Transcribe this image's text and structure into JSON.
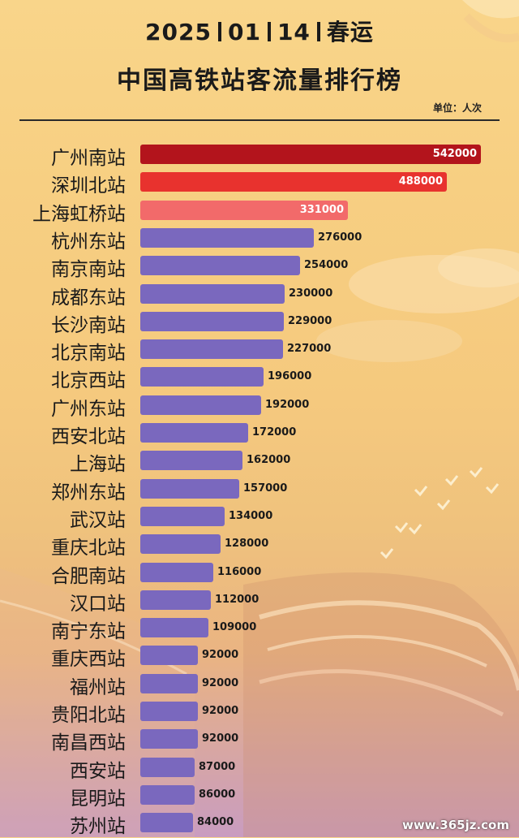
{
  "header": {
    "year": "2025",
    "month": "01",
    "day": "14",
    "event": "春运",
    "title": "中国高铁站客流量排行榜",
    "unit_label": "单位：人次"
  },
  "watermark": "www.365jz.com",
  "colors": {
    "rank1": "#b3141c",
    "rank2": "#e8322e",
    "rank3": "#f26a6a",
    "default": "#7a68be",
    "value_on_bar": "#ffffff",
    "value_outside": "#1a1a1a"
  },
  "chart_data": {
    "type": "bar",
    "orientation": "horizontal",
    "title": "中国高铁站客流量排行榜",
    "xlim": [
      0,
      560000
    ],
    "grid": false,
    "categories": [
      "广州南站",
      "深圳北站",
      "上海虹桥站",
      "杭州东站",
      "南京南站",
      "成都东站",
      "长沙南站",
      "北京南站",
      "北京西站",
      "广州东站",
      "西安北站",
      "上海站",
      "郑州东站",
      "武汉站",
      "重庆北站",
      "合肥南站",
      "汉口站",
      "南宁东站",
      "重庆西站",
      "福州站",
      "贵阳北站",
      "南昌西站",
      "西安站",
      "昆明站",
      "苏州站"
    ],
    "values": [
      542000,
      488000,
      331000,
      276000,
      254000,
      230000,
      229000,
      227000,
      196000,
      192000,
      172000,
      162000,
      157000,
      134000,
      128000,
      116000,
      112000,
      109000,
      92000,
      92000,
      92000,
      92000,
      87000,
      86000,
      84000
    ],
    "value_labels": [
      "542000",
      "488000",
      "331000",
      "276000",
      "254000",
      "230000",
      "229000",
      "227000",
      "196000",
      "192000",
      "172000",
      "162000",
      "157000",
      "134000",
      "128000",
      "116000",
      "112000",
      "109000",
      "92000",
      "92000",
      "92000",
      "92000",
      "87000",
      "86000",
      "84000"
    ]
  }
}
